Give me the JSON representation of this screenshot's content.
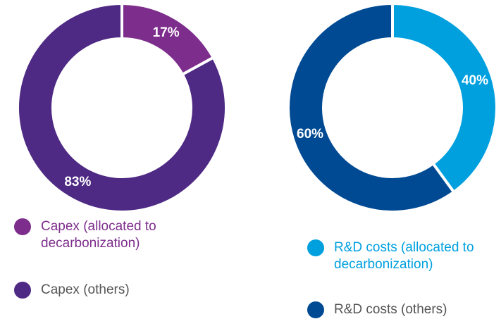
{
  "chart_data": [
    {
      "type": "pie",
      "categories": [
        "Capex (allocated to decarbonization)",
        "Capex (others)"
      ],
      "values": [
        17,
        83
      ],
      "value_labels": [
        "17%",
        "83%"
      ],
      "colors": [
        "#7d2d8c",
        "#4e2a84"
      ]
    },
    {
      "type": "pie",
      "categories": [
        "R&D costs (allocated to decarbonization)",
        "R&D costs (others)"
      ],
      "values": [
        40,
        60
      ],
      "value_labels": [
        "40%",
        "60%"
      ],
      "colors": [
        "#00a0df",
        "#004a93"
      ]
    }
  ]
}
